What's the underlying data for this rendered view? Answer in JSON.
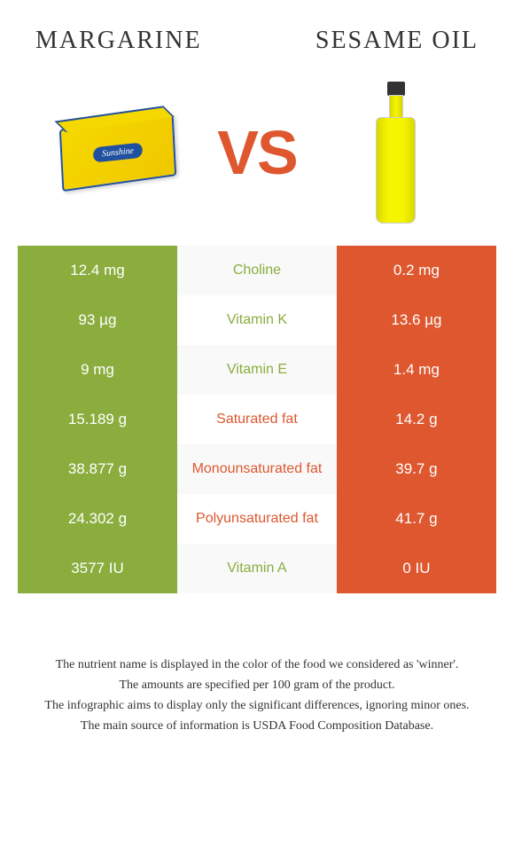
{
  "header": {
    "left_title": "Margarine",
    "right_title": "Sesame oil",
    "vs_label": "VS",
    "margarine_brand": "Sunshine"
  },
  "colors": {
    "green": "#8aad3e",
    "orange": "#de572f",
    "white": "#ffffff"
  },
  "table": {
    "rows": [
      {
        "left": "12.4 mg",
        "mid": "Choline",
        "right": "0.2 mg",
        "winner": "left"
      },
      {
        "left": "93 µg",
        "mid": "Vitamin K",
        "right": "13.6 µg",
        "winner": "left"
      },
      {
        "left": "9 mg",
        "mid": "Vitamin E",
        "right": "1.4 mg",
        "winner": "left"
      },
      {
        "left": "15.189 g",
        "mid": "Saturated fat",
        "right": "14.2 g",
        "winner": "right"
      },
      {
        "left": "38.877 g",
        "mid": "Monounsaturated fat",
        "right": "39.7 g",
        "winner": "right"
      },
      {
        "left": "24.302 g",
        "mid": "Polyunsaturated fat",
        "right": "41.7 g",
        "winner": "right"
      },
      {
        "left": "3577 IU",
        "mid": "Vitamin A",
        "right": "0 IU",
        "winner": "left"
      }
    ]
  },
  "footer": {
    "line1": "The nutrient name is displayed in the color of the food we considered as 'winner'.",
    "line2": "The amounts are specified per 100 gram of the product.",
    "line3": "The infographic aims to display only the significant differences, ignoring minor ones.",
    "line4": "The main source of information is USDA Food Composition Database."
  }
}
